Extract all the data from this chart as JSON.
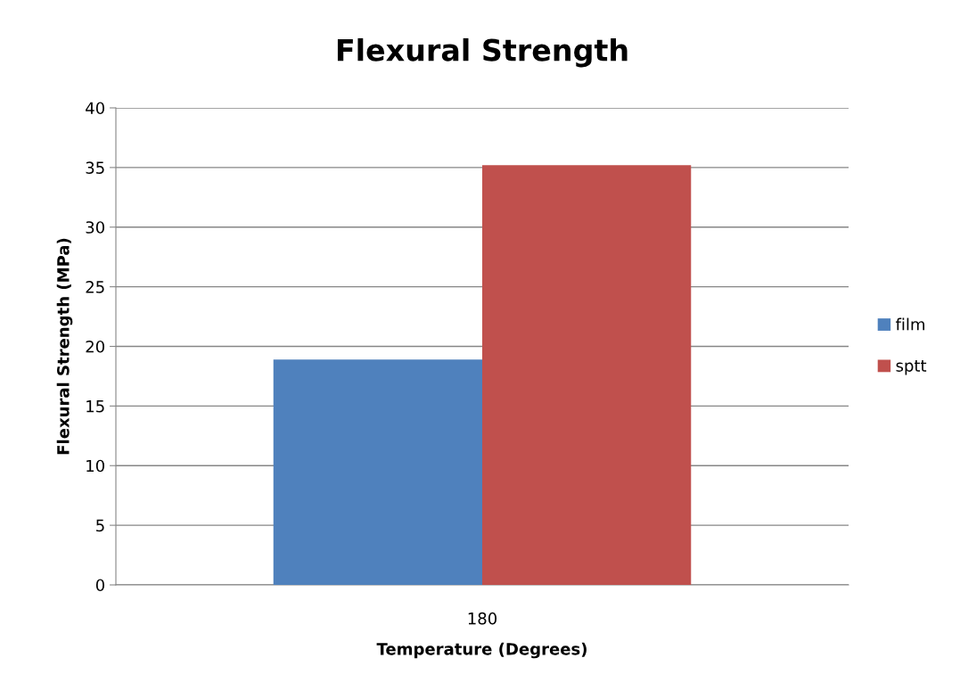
{
  "chart_data": {
    "type": "bar",
    "title": "Flexural Strength",
    "xlabel": "Temperature (Degrees)",
    "ylabel": "Flexural Strength (MPa)",
    "categories": [
      "180"
    ],
    "series": [
      {
        "name": "film",
        "color": "#4f81bd",
        "values": [
          18.9
        ]
      },
      {
        "name": "sptt",
        "color": "#c0504d",
        "values": [
          35.2
        ]
      }
    ],
    "ylim": [
      0,
      40
    ],
    "yticks": [
      0,
      5,
      10,
      15,
      20,
      25,
      30,
      35,
      40
    ],
    "grid": "y",
    "legend": "right"
  }
}
